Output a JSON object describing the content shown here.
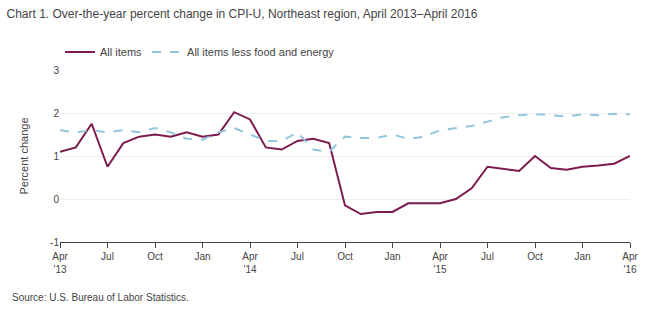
{
  "chart_data": {
    "type": "line",
    "title": "Chart 1. Over-the-year percent change in CPI-U, Northeast region, April 2013–April 2016",
    "ylabel": "Percent change",
    "annotations": [
      "Source: U.S. Bureau of Labor Statistics."
    ],
    "categories": [
      "Apr\n'13",
      null,
      null,
      "Jul",
      null,
      null,
      "Oct",
      null,
      null,
      "Jan",
      null,
      null,
      "Apr\n'14",
      null,
      null,
      "Jul",
      null,
      null,
      "Oct",
      null,
      null,
      "Jan",
      null,
      null,
      "Apr\n'15",
      null,
      null,
      "Jul",
      null,
      null,
      "Oct",
      null,
      null,
      "Jan",
      null,
      null,
      "Apr\n'16"
    ],
    "series": [
      {
        "name": "All items",
        "color": "#7B1B4E",
        "line_style": "solid",
        "values": [
          1.1,
          1.2,
          1.75,
          0.75,
          1.3,
          1.45,
          1.5,
          1.45,
          1.55,
          1.45,
          1.5,
          2.02,
          1.85,
          1.2,
          1.15,
          1.35,
          1.4,
          1.3,
          -0.15,
          -0.35,
          -0.3,
          -0.3,
          -0.1,
          -0.1,
          -0.1,
          0.0,
          0.25,
          0.75,
          0.7,
          0.65,
          1.0,
          0.72,
          0.68,
          0.75,
          0.78,
          0.82,
          1.0
        ]
      },
      {
        "name": "All items less food and energy",
        "color": "#92C5DE",
        "line_style": "dashed",
        "values": [
          1.6,
          1.55,
          1.6,
          1.55,
          1.6,
          1.55,
          1.65,
          1.55,
          1.4,
          1.38,
          1.55,
          1.65,
          1.5,
          1.35,
          1.35,
          1.55,
          1.15,
          1.1,
          1.45,
          1.42,
          1.42,
          1.5,
          1.4,
          1.45,
          1.6,
          1.65,
          1.7,
          1.8,
          1.9,
          1.95,
          1.97,
          1.95,
          1.92,
          1.97,
          1.95,
          1.98,
          1.97
        ]
      }
    ],
    "ylim": [
      -1,
      3
    ],
    "yticks": [
      -1,
      0,
      1,
      2,
      3
    ],
    "grid": true,
    "legend": "top"
  }
}
